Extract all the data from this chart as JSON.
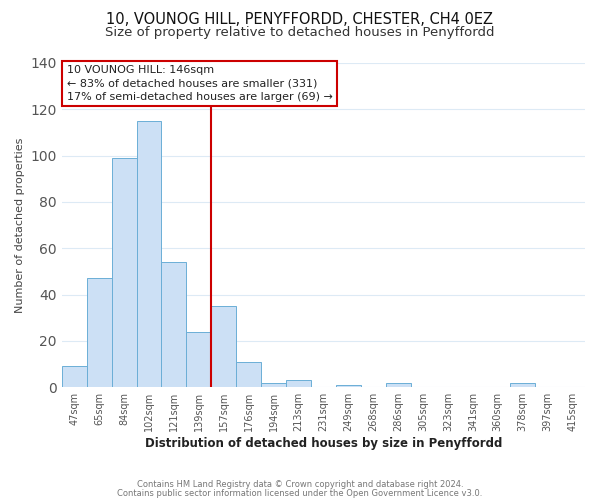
{
  "title_line1": "10, VOUNOG HILL, PENYFFORDD, CHESTER, CH4 0EZ",
  "title_line2": "Size of property relative to detached houses in Penyffordd",
  "xlabel": "Distribution of detached houses by size in Penyffordd",
  "ylabel": "Number of detached properties",
  "bar_labels": [
    "47sqm",
    "65sqm",
    "84sqm",
    "102sqm",
    "121sqm",
    "139sqm",
    "157sqm",
    "176sqm",
    "194sqm",
    "213sqm",
    "231sqm",
    "249sqm",
    "268sqm",
    "286sqm",
    "305sqm",
    "323sqm",
    "341sqm",
    "360sqm",
    "378sqm",
    "397sqm",
    "415sqm"
  ],
  "bar_heights": [
    9,
    47,
    99,
    115,
    54,
    24,
    35,
    11,
    2,
    3,
    0,
    1,
    0,
    2,
    0,
    0,
    0,
    0,
    2,
    0,
    0
  ],
  "bar_color": "#cce0f5",
  "bar_edge_color": "#6baed6",
  "vline_x_index": 6,
  "vline_color": "#cc0000",
  "annotation_title": "10 VOUNOG HILL: 146sqm",
  "annotation_line2": "← 83% of detached houses are smaller (331)",
  "annotation_line3": "17% of semi-detached houses are larger (69) →",
  "annotation_box_edge_color": "#cc0000",
  "annotation_box_fill": "#ffffff",
  "ylim": [
    0,
    140
  ],
  "footer_line1": "Contains HM Land Registry data © Crown copyright and database right 2024.",
  "footer_line2": "Contains public sector information licensed under the Open Government Licence v3.0.",
  "bg_color": "#ffffff",
  "grid_color": "#ddeaf5",
  "title_fontsize": 10.5,
  "subtitle_fontsize": 9.5
}
